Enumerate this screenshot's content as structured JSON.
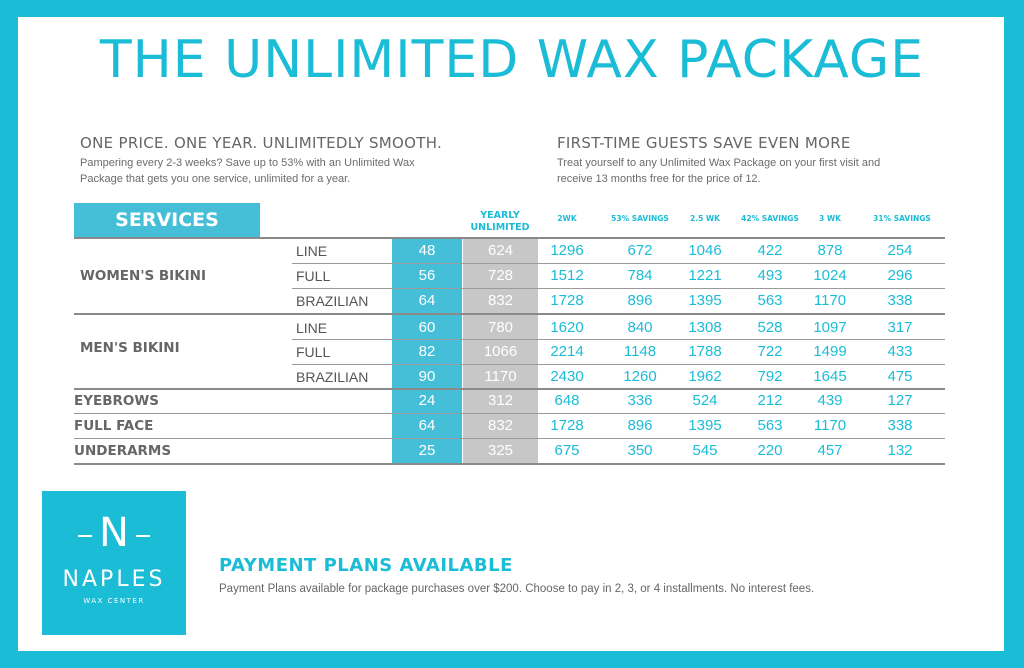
{
  "title": "THE UNLIMITED WAX PACKAGE",
  "intro_left": {
    "heading": "ONE PRICE. ONE YEAR. UNLIMITEDLY SMOOTH.",
    "line1": "Pampering every 2-3 weeks? Save up to 53% with an Unlimited Wax",
    "line2": "Package that gets you one service, unlimited for a year."
  },
  "intro_right": {
    "heading": "FIRST-TIME GUESTS SAVE EVEN MORE",
    "line1": "Treat yourself to any Unlimited Wax Package on your first visit and",
    "line2": "receive 13 months free for the price of 12."
  },
  "table": {
    "services_label": "SERVICES",
    "columns": {
      "yearly_1": "YEARLY",
      "yearly_2": "UNLIMITED",
      "c2wk": "2WK",
      "s53": "53% SAVINGS",
      "c25wk": "2.5 WK",
      "s42": "42% SAVINGS",
      "c3wk": "3 WK",
      "s31": "31% SAVINGS"
    },
    "categories": {
      "womens": "WOMEN'S BIKINI",
      "mens": "MEN'S BIKINI",
      "eyebrows": "EYEBROWS",
      "fullface": "FULL FACE",
      "underarms": "UNDERARMS"
    },
    "rows": [
      {
        "sub": "LINE",
        "price": "48",
        "yearly": "624",
        "w2": "1296",
        "s53": "672",
        "w25": "1046",
        "s42": "422",
        "w3": "878",
        "s31": "254"
      },
      {
        "sub": "FULL",
        "price": "56",
        "yearly": "728",
        "w2": "1512",
        "s53": "784",
        "w25": "1221",
        "s42": "493",
        "w3": "1024",
        "s31": "296"
      },
      {
        "sub": "BRAZILIAN",
        "price": "64",
        "yearly": "832",
        "w2": "1728",
        "s53": "896",
        "w25": "1395",
        "s42": "563",
        "w3": "1170",
        "s31": "338"
      },
      {
        "sub": "LINE",
        "price": "60",
        "yearly": "780",
        "w2": "1620",
        "s53": "840",
        "w25": "1308",
        "s42": "528",
        "w3": "1097",
        "s31": "317"
      },
      {
        "sub": "FULL",
        "price": "82",
        "yearly": "1066",
        "w2": "2214",
        "s53": "1148",
        "w25": "1788",
        "s42": "722",
        "w3": "1499",
        "s31": "433"
      },
      {
        "sub": "BRAZILIAN",
        "price": "90",
        "yearly": "1170",
        "w2": "2430",
        "s53": "1260",
        "w25": "1962",
        "s42": "792",
        "w3": "1645",
        "s31": "475"
      },
      {
        "sub": "",
        "price": "24",
        "yearly": "312",
        "w2": "648",
        "s53": "336",
        "w25": "524",
        "s42": "212",
        "w3": "439",
        "s31": "127"
      },
      {
        "sub": "",
        "price": "64",
        "yearly": "832",
        "w2": "1728",
        "s53": "896",
        "w25": "1395",
        "s42": "563",
        "w3": "1170",
        "s31": "338"
      },
      {
        "sub": "",
        "price": "25",
        "yearly": "325",
        "w2": "675",
        "s53": "350",
        "w25": "545",
        "s42": "220",
        "w3": "457",
        "s31": "132"
      }
    ]
  },
  "logo": {
    "letter": "N",
    "name": "NAPLES",
    "tagline": "WAX CENTER"
  },
  "payment": {
    "heading": "PAYMENT PLANS AVAILABLE",
    "text": "Payment Plans available for package purchases over $200. Choose to pay in 2, 3, or 4 installments. No interest fees."
  },
  "colors": {
    "accent": "#1bbcd6",
    "price_band": "#45bfd8",
    "yearly_band": "#c7c7c7"
  }
}
